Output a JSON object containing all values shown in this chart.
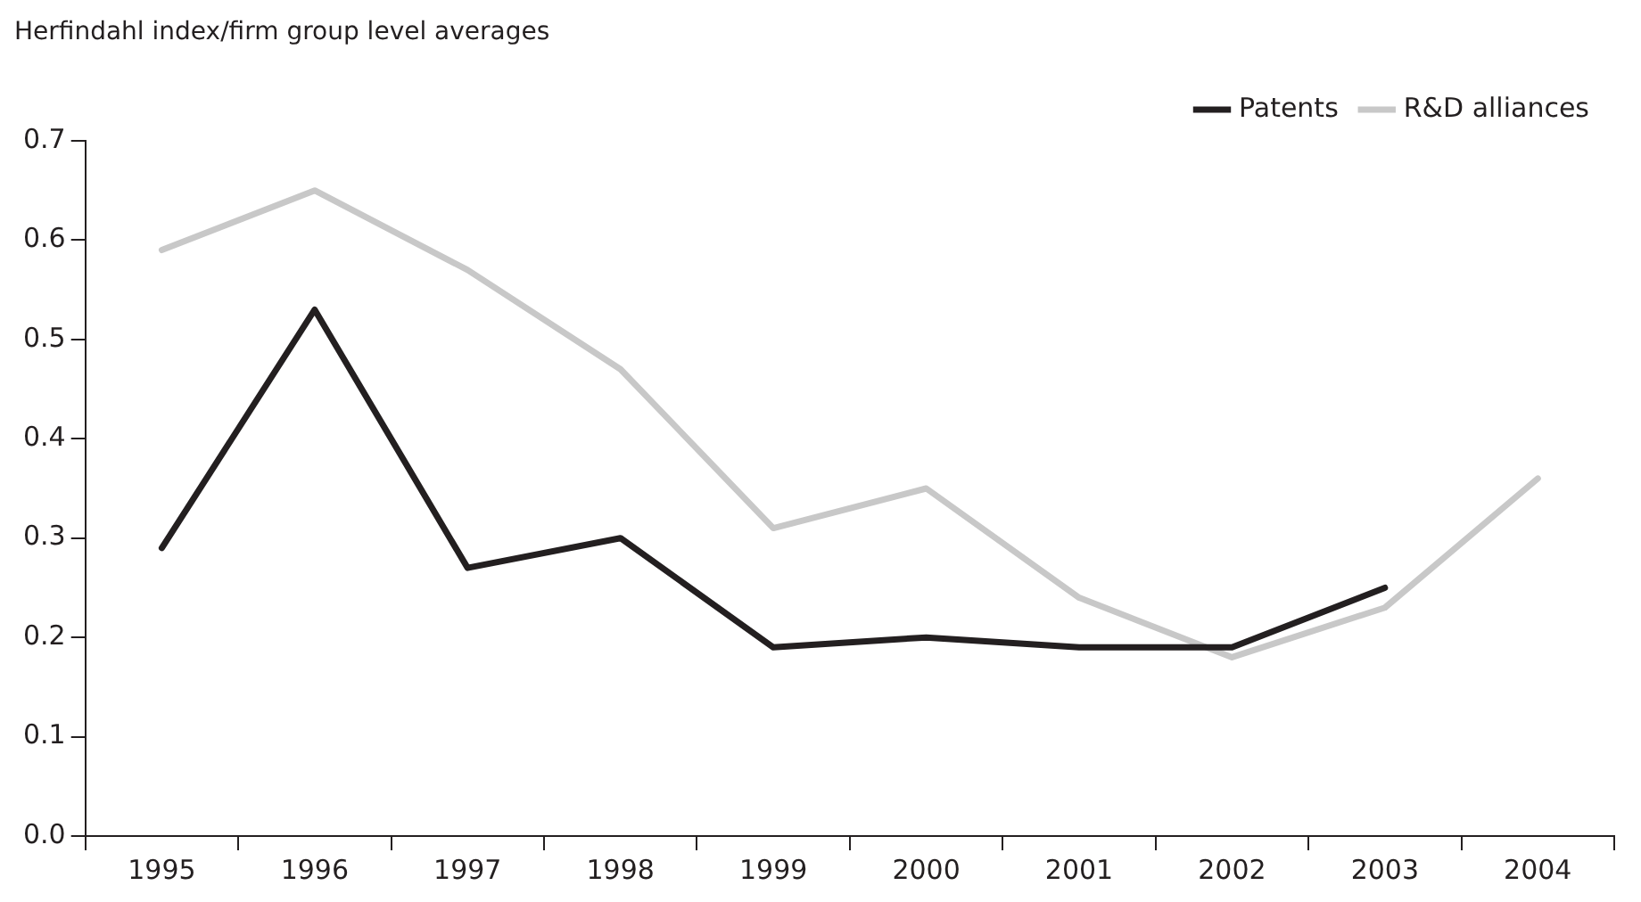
{
  "chart_data": {
    "type": "line",
    "ylabel": "Herfindahl index/firm group level averages",
    "categories": [
      "1995",
      "1996",
      "1997",
      "1998",
      "1999",
      "2000",
      "2001",
      "2002",
      "2003",
      "2004"
    ],
    "series": [
      {
        "name": "Patents",
        "color": "#231f20",
        "values": [
          0.29,
          0.53,
          0.27,
          0.3,
          0.19,
          0.2,
          0.19,
          0.19,
          0.25,
          null
        ]
      },
      {
        "name": "R&D alliances",
        "color": "#c8c8c8",
        "values": [
          0.59,
          0.65,
          0.57,
          0.47,
          0.31,
          0.35,
          0.24,
          0.18,
          0.23,
          0.36
        ]
      }
    ],
    "ylim": [
      0,
      0.7
    ],
    "yticks": [
      {
        "value": 0,
        "label": "0.0"
      },
      0.1,
      0.2,
      0.3,
      0.4,
      0.5,
      0.6,
      0.7
    ],
    "grid": false,
    "legend": "top right",
    "marker": "none",
    "line_style": "solid"
  }
}
